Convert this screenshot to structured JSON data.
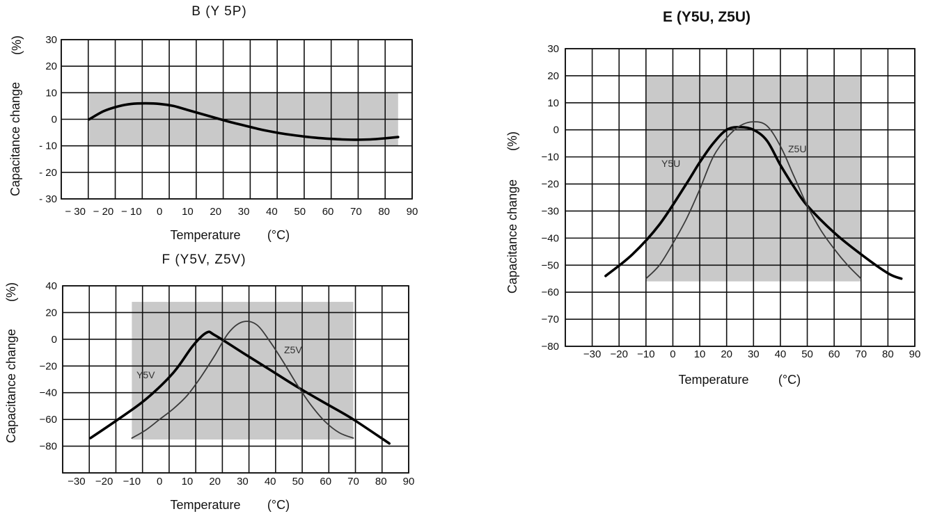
{
  "chart_data": [
    {
      "type": "line",
      "title": "B (Y 5P)",
      "xlabel": "Temperature",
      "xunit": "(°C)",
      "ylabel": "Capacitance change",
      "yunit": "(%)",
      "xlim": [
        -35,
        90
      ],
      "ylim": [
        -30,
        30
      ],
      "x_ticks": [
        "− 30",
        "− 20",
        "− 10",
        "0",
        "10",
        "20",
        "30",
        "40",
        "50",
        "60",
        "70",
        "80",
        "90"
      ],
      "y_ticks": [
        "30",
        "20",
        "10",
        "0",
        "- 10",
        "- 20",
        "- 30"
      ],
      "tolerance_band": {
        "x": [
          -25,
          85
        ],
        "y": [
          -10,
          10
        ]
      },
      "series": [
        {
          "label": "",
          "style": "thick",
          "x": [
            -25,
            -20,
            -15,
            -10,
            -5,
            0,
            5,
            10,
            15,
            20,
            25,
            30,
            35,
            40,
            45,
            50,
            55,
            60,
            65,
            70,
            75,
            80,
            85
          ],
          "y": [
            0,
            3,
            4.8,
            5.8,
            6,
            5.8,
            5,
            3.5,
            2,
            0.5,
            -1,
            -2.3,
            -3.6,
            -4.7,
            -5.6,
            -6.3,
            -6.9,
            -7.3,
            -7.6,
            -7.7,
            -7.6,
            -7.2,
            -6.7
          ]
        }
      ]
    },
    {
      "type": "line",
      "title": "E (Y5U, Z5U)",
      "xlabel": "Temperature",
      "xunit": "(°C)",
      "ylabel": "Capacitance change",
      "yunit": "(%)",
      "xlim": [
        -40,
        90
      ],
      "ylim": [
        -80,
        30
      ],
      "x_ticks": [
        "−30",
        "−20",
        "−10",
        "0",
        "10",
        "20",
        "30",
        "40",
        "50",
        "60",
        "70",
        "80",
        "90"
      ],
      "y_ticks": [
        "30",
        "20",
        "10",
        "0",
        "−10",
        "−20",
        "−30",
        "−40",
        "−50",
        "−60",
        "−70",
        "−80"
      ],
      "tolerance_band": {
        "x": [
          -10,
          70
        ],
        "y": [
          -56,
          20
        ]
      },
      "series": [
        {
          "label": "Y5U",
          "style": "thick",
          "x": [
            -25,
            -15,
            -5,
            5,
            10,
            15,
            20,
            25,
            30,
            35,
            40,
            45,
            50,
            60,
            70,
            80,
            85
          ],
          "y": [
            -54,
            -46,
            -35,
            -20,
            -12,
            -5,
            0,
            1,
            0,
            -4,
            -13,
            -21,
            -28,
            -38,
            -46,
            -53,
            -55
          ]
        },
        {
          "label": "Z5U",
          "style": "thin",
          "x": [
            -10,
            -5,
            0,
            5,
            10,
            15,
            20,
            25,
            30,
            35,
            40,
            45,
            50,
            55,
            60,
            65,
            70
          ],
          "y": [
            -55,
            -50,
            -42,
            -33,
            -22,
            -10,
            -3,
            1.5,
            3,
            1.5,
            -6,
            -17,
            -28,
            -37,
            -44,
            -50,
            -55
          ]
        }
      ]
    },
    {
      "type": "line",
      "title": "F (Y5V, Z5V)",
      "xlabel": "Temperature",
      "xunit": "(°C)",
      "ylabel": "Capacitance change",
      "yunit": "(%)",
      "xlim": [
        -35,
        90
      ],
      "ylim": [
        -100,
        40
      ],
      "x_ticks": [
        "−30",
        "−20",
        "−10",
        "0",
        "10",
        "20",
        "30",
        "40",
        "50",
        "60",
        "70",
        "80",
        "90"
      ],
      "y_ticks": [
        "40",
        "20",
        "0",
        "−20",
        "−40",
        "−60",
        "−80"
      ],
      "tolerance_band": {
        "x": [
          -10,
          70
        ],
        "y": [
          -75,
          28
        ]
      },
      "series": [
        {
          "label": "Y5V",
          "style": "thick",
          "x": [
            -25,
            -15,
            -5,
            5,
            12,
            17,
            20,
            30,
            40,
            50,
            60,
            70,
            83
          ],
          "y": [
            -74,
            -60,
            -45,
            -25,
            -5,
            5,
            3,
            -10,
            -23,
            -36,
            -48,
            -60,
            -78
          ]
        },
        {
          "label": "Z5V",
          "style": "thin",
          "x": [
            -10,
            -5,
            0,
            5,
            10,
            15,
            20,
            25,
            30,
            35,
            40,
            45,
            50,
            55,
            60,
            65,
            70
          ],
          "y": [
            -74,
            -68,
            -60,
            -52,
            -42,
            -28,
            -12,
            5,
            13,
            11,
            -2,
            -18,
            -35,
            -50,
            -62,
            -70,
            -74
          ]
        }
      ]
    }
  ]
}
